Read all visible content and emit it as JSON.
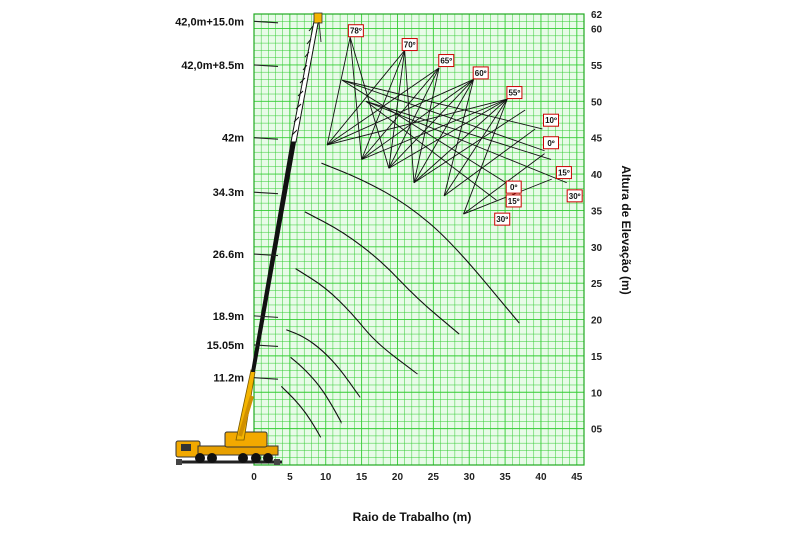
{
  "chart_data": {
    "type": "line",
    "xlabel": "Raio de Trabalho (m)",
    "ylabel": "Altura de Elevação (m)",
    "xlim": [
      0,
      46
    ],
    "ylim": [
      0,
      62
    ],
    "x_ticks": [
      "0",
      "5",
      "10",
      "15",
      "20",
      "25",
      "30",
      "35",
      "40",
      "45"
    ],
    "y_ticks": [
      {
        "label": "05",
        "value": 5
      },
      {
        "label": "10",
        "value": 10
      },
      {
        "label": "15",
        "value": 15
      },
      {
        "label": "20",
        "value": 20
      },
      {
        "label": "25",
        "value": 25
      },
      {
        "label": "30",
        "value": 30
      },
      {
        "label": "35",
        "value": 35
      },
      {
        "label": "40",
        "value": 40
      },
      {
        "label": "45",
        "value": 45
      },
      {
        "label": "50",
        "value": 50
      },
      {
        "label": "55",
        "value": 55
      },
      {
        "label": "60",
        "value": 60
      },
      {
        "label": "62",
        "value": 62
      }
    ],
    "grid": true,
    "boom_labels": [
      {
        "label": "42,0m+15.0m",
        "y": 61
      },
      {
        "label": "42,0m+8.5m",
        "y": 55
      },
      {
        "label": "42m",
        "y": 45
      },
      {
        "label": "34.3m",
        "y": 37.5
      },
      {
        "label": "26.6m",
        "y": 29
      },
      {
        "label": "18.9m",
        "y": 20.5
      },
      {
        "label": "15.05m",
        "y": 16.5
      },
      {
        "label": "11.2m",
        "y": 12
      }
    ],
    "series": [
      {
        "points": [
          [
            3.8,
            10.8
          ],
          [
            5.5,
            9.2
          ],
          [
            7.2,
            7.2
          ],
          [
            8.6,
            5
          ],
          [
            9.3,
            3.8
          ]
        ]
      },
      {
        "points": [
          [
            5.1,
            14.8
          ],
          [
            6.8,
            13.4
          ],
          [
            8.8,
            11.3
          ],
          [
            10.4,
            9
          ],
          [
            12.2,
            5.8
          ]
        ]
      },
      {
        "points": [
          [
            4.5,
            18.6
          ],
          [
            7,
            17.6
          ],
          [
            9.5,
            15.8
          ],
          [
            12,
            13.2
          ],
          [
            14.8,
            9.3
          ]
        ]
      },
      {
        "points": [
          [
            5.8,
            27
          ],
          [
            10,
            24.4
          ],
          [
            13.7,
            20.8
          ],
          [
            17,
            16.8
          ],
          [
            22.8,
            12.5
          ]
        ]
      },
      {
        "points": [
          [
            7.1,
            34.8
          ],
          [
            12.5,
            32
          ],
          [
            17.8,
            28
          ],
          [
            22.8,
            22.8
          ],
          [
            28.6,
            18
          ]
        ]
      },
      {
        "points": [
          [
            9.4,
            41.5
          ],
          [
            15.2,
            39.2
          ],
          [
            21.4,
            35.8
          ],
          [
            27.6,
            30.6
          ],
          [
            37,
            19.5
          ]
        ]
      }
    ],
    "angle_labels": [
      {
        "label": "78º",
        "x": 14.2,
        "y": 59.7
      },
      {
        "label": "70º",
        "x": 21.7,
        "y": 57.8
      },
      {
        "label": "65º",
        "x": 26.8,
        "y": 55.6
      },
      {
        "label": "60º",
        "x": 31.6,
        "y": 53.9
      },
      {
        "label": "55º",
        "x": 36.3,
        "y": 51.2
      },
      {
        "label": "10º",
        "x": 41.4,
        "y": 47.4
      },
      {
        "label": "0º",
        "x": 41.4,
        "y": 44.3
      },
      {
        "label": "15º",
        "x": 43.2,
        "y": 40.2
      },
      {
        "label": "0º",
        "x": 36.2,
        "y": 38.2
      },
      {
        "label": "15º",
        "x": 36.2,
        "y": 36.3
      },
      {
        "label": "30º",
        "x": 44.7,
        "y": 37
      },
      {
        "label": "30º",
        "x": 34.6,
        "y": 33.8
      }
    ],
    "jib_rays": [
      [
        [
          10.2,
          44
        ],
        [
          13.4,
          58.8
        ]
      ],
      [
        [
          10.2,
          44
        ],
        [
          21,
          57
        ]
      ],
      [
        [
          10.2,
          44
        ],
        [
          25.8,
          54.6
        ]
      ],
      [
        [
          10.2,
          44
        ],
        [
          30.6,
          53
        ]
      ],
      [
        [
          10.2,
          44
        ],
        [
          35.3,
          50.3
        ]
      ],
      [
        [
          15,
          42
        ],
        [
          13.4,
          58.8
        ]
      ],
      [
        [
          15,
          42
        ],
        [
          21,
          57
        ]
      ],
      [
        [
          15,
          42
        ],
        [
          25.8,
          54.6
        ]
      ],
      [
        [
          15,
          42
        ],
        [
          30.6,
          53
        ]
      ],
      [
        [
          15,
          42
        ],
        [
          35.3,
          50.3
        ]
      ],
      [
        [
          18.8,
          40.8
        ],
        [
          13.4,
          58.8
        ]
      ],
      [
        [
          18.8,
          40.8
        ],
        [
          21,
          57
        ]
      ],
      [
        [
          18.8,
          40.8
        ],
        [
          25.8,
          54.6
        ]
      ],
      [
        [
          18.8,
          40.8
        ],
        [
          30.6,
          53
        ]
      ],
      [
        [
          18.8,
          40.8
        ],
        [
          35.3,
          50.3
        ]
      ],
      [
        [
          22.3,
          38.8
        ],
        [
          21,
          57
        ]
      ],
      [
        [
          22.3,
          38.8
        ],
        [
          25.8,
          54.6
        ]
      ],
      [
        [
          22.3,
          38.8
        ],
        [
          30.6,
          53
        ]
      ],
      [
        [
          22.3,
          38.8
        ],
        [
          35.3,
          50.3
        ]
      ],
      [
        [
          22.3,
          38.8
        ],
        [
          37.8,
          48.8
        ]
      ],
      [
        [
          26.5,
          37
        ],
        [
          30.6,
          53
        ]
      ],
      [
        [
          26.5,
          37
        ],
        [
          35.3,
          50.3
        ]
      ],
      [
        [
          26.5,
          37
        ],
        [
          39.2,
          46.2
        ]
      ],
      [
        [
          29.2,
          34.5
        ],
        [
          35.3,
          50.3
        ]
      ],
      [
        [
          29.2,
          34.5
        ],
        [
          40.5,
          42.8
        ]
      ],
      [
        [
          29.2,
          34.5
        ],
        [
          41.5,
          39.3
        ]
      ],
      [
        [
          12.3,
          52.9
        ],
        [
          40.2,
          46.2
        ]
      ],
      [
        [
          12.3,
          52.9
        ],
        [
          40.5,
          43.2
        ]
      ],
      [
        [
          15.6,
          50
        ],
        [
          41.4,
          42
        ]
      ],
      [
        [
          15.6,
          50
        ],
        [
          43.6,
          38.8
        ]
      ],
      [
        [
          12.3,
          52.9
        ],
        [
          35.3,
          38.7
        ]
      ],
      [
        [
          15.6,
          50
        ],
        [
          33.8,
          36.4
        ]
      ]
    ]
  }
}
